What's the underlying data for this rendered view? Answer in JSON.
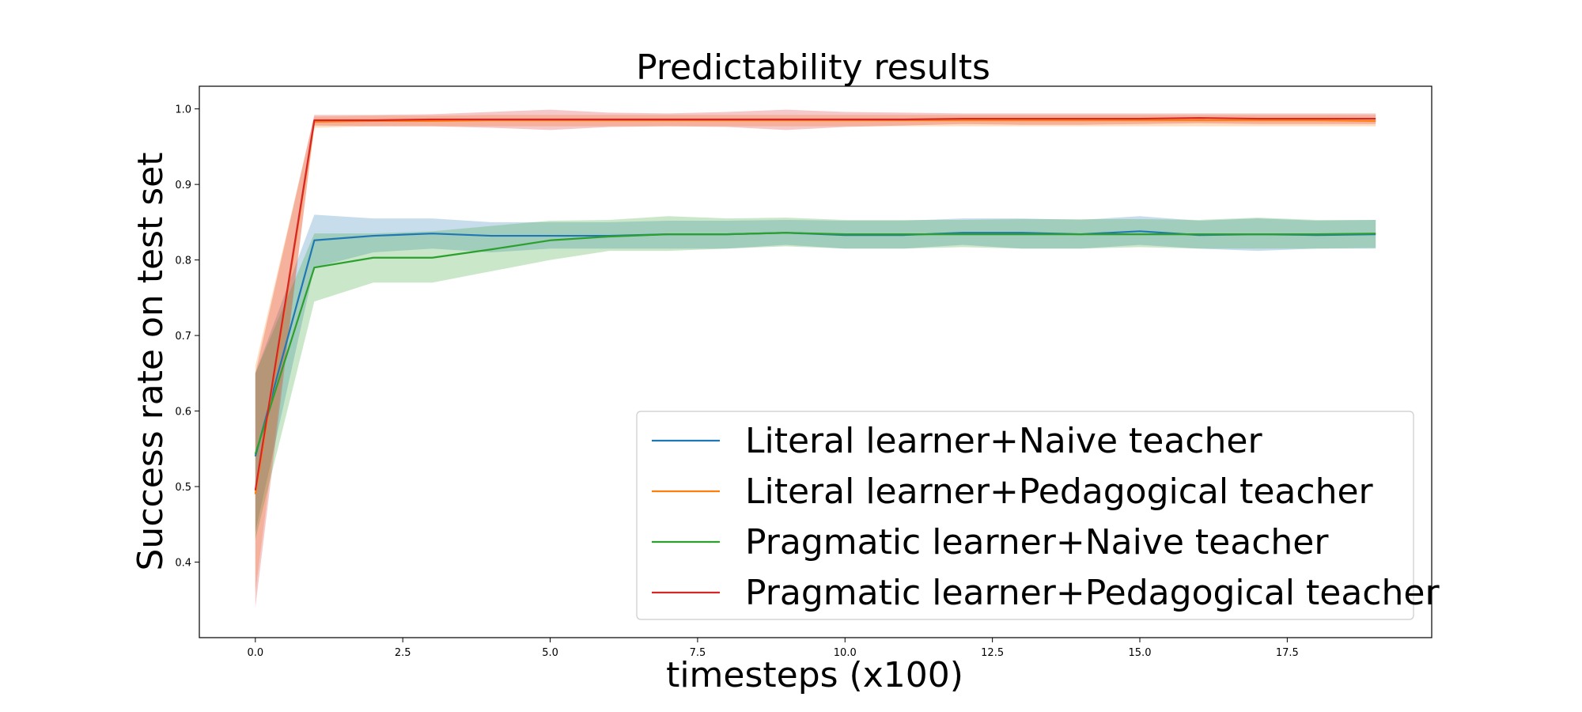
{
  "chart_data": {
    "type": "line",
    "title": "Predictability results",
    "xlabel": "timesteps (x100)",
    "ylabel": "Success rate on test set",
    "xlim": [
      -0.95,
      19.95
    ],
    "ylim": [
      0.3,
      1.03
    ],
    "xticks": [
      0.0,
      2.5,
      5.0,
      7.5,
      10.0,
      12.5,
      15.0,
      17.5
    ],
    "xtick_labels": [
      "0.0",
      "2.5",
      "5.0",
      "7.5",
      "10.0",
      "12.5",
      "15.0",
      "17.5"
    ],
    "yticks": [
      0.4,
      0.5,
      0.6,
      0.7,
      0.8,
      0.9,
      1.0
    ],
    "ytick_labels": [
      "0.4",
      "0.5",
      "0.6",
      "0.7",
      "0.8",
      "0.9",
      "1.0"
    ],
    "grid": false,
    "legend_position": "lower-right",
    "x": [
      0,
      1,
      2,
      3,
      4,
      5,
      6,
      7,
      8,
      9,
      10,
      11,
      12,
      13,
      14,
      15,
      16,
      17,
      18,
      19
    ],
    "series": [
      {
        "name": "Literal learner+Naive teacher",
        "color": "#1f77b4",
        "values": [
          0.54,
          0.826,
          0.832,
          0.835,
          0.832,
          0.832,
          0.832,
          0.834,
          0.834,
          0.836,
          0.833,
          0.833,
          0.836,
          0.836,
          0.834,
          0.838,
          0.833,
          0.834,
          0.833,
          0.834
        ],
        "lower": [
          0.44,
          0.79,
          0.81,
          0.815,
          0.81,
          0.815,
          0.815,
          0.815,
          0.815,
          0.82,
          0.815,
          0.815,
          0.82,
          0.815,
          0.815,
          0.82,
          0.815,
          0.812,
          0.815,
          0.815
        ],
        "upper": [
          0.65,
          0.86,
          0.855,
          0.855,
          0.85,
          0.85,
          0.85,
          0.852,
          0.852,
          0.853,
          0.852,
          0.852,
          0.855,
          0.855,
          0.853,
          0.858,
          0.852,
          0.855,
          0.852,
          0.853
        ]
      },
      {
        "name": "Literal learner+Pedagogical teacher",
        "color": "#ff7f0e",
        "values": [
          0.49,
          0.983,
          0.984,
          0.984,
          0.985,
          0.985,
          0.985,
          0.985,
          0.985,
          0.985,
          0.985,
          0.985,
          0.985,
          0.985,
          0.985,
          0.985,
          0.985,
          0.985,
          0.985,
          0.984
        ],
        "lower": [
          0.36,
          0.975,
          0.977,
          0.977,
          0.977,
          0.977,
          0.977,
          0.977,
          0.977,
          0.977,
          0.977,
          0.977,
          0.977,
          0.977,
          0.977,
          0.977,
          0.977,
          0.977,
          0.977,
          0.977
        ],
        "upper": [
          0.66,
          0.99,
          0.991,
          0.991,
          0.992,
          0.992,
          0.992,
          0.992,
          0.992,
          0.992,
          0.992,
          0.992,
          0.992,
          0.992,
          0.992,
          0.992,
          0.992,
          0.992,
          0.992,
          0.992
        ]
      },
      {
        "name": "Pragmatic learner+Naive teacher",
        "color": "#2ca02c",
        "values": [
          0.543,
          0.79,
          0.803,
          0.803,
          0.814,
          0.826,
          0.831,
          0.834,
          0.834,
          0.836,
          0.834,
          0.834,
          0.834,
          0.834,
          0.834,
          0.834,
          0.834,
          0.834,
          0.834,
          0.835
        ],
        "lower": [
          0.43,
          0.745,
          0.77,
          0.77,
          0.785,
          0.8,
          0.812,
          0.812,
          0.815,
          0.818,
          0.815,
          0.815,
          0.817,
          0.815,
          0.815,
          0.817,
          0.815,
          0.815,
          0.815,
          0.816
        ],
        "upper": [
          0.65,
          0.835,
          0.835,
          0.838,
          0.845,
          0.852,
          0.853,
          0.858,
          0.855,
          0.856,
          0.853,
          0.853,
          0.853,
          0.854,
          0.854,
          0.854,
          0.853,
          0.856,
          0.853,
          0.853
        ]
      },
      {
        "name": "Pragmatic learner+Pedagogical teacher",
        "color": "#d62728",
        "values": [
          0.495,
          0.985,
          0.985,
          0.986,
          0.986,
          0.986,
          0.986,
          0.986,
          0.986,
          0.986,
          0.986,
          0.986,
          0.987,
          0.987,
          0.987,
          0.987,
          0.988,
          0.987,
          0.987,
          0.987
        ],
        "lower": [
          0.34,
          0.978,
          0.977,
          0.977,
          0.975,
          0.972,
          0.976,
          0.977,
          0.976,
          0.972,
          0.976,
          0.978,
          0.98,
          0.979,
          0.979,
          0.98,
          0.981,
          0.98,
          0.98,
          0.98
        ],
        "upper": [
          0.65,
          0.992,
          0.992,
          0.993,
          0.996,
          0.999,
          0.995,
          0.994,
          0.996,
          0.999,
          0.996,
          0.995,
          0.994,
          0.994,
          0.994,
          0.994,
          0.994,
          0.994,
          0.994,
          0.994
        ]
      }
    ]
  }
}
